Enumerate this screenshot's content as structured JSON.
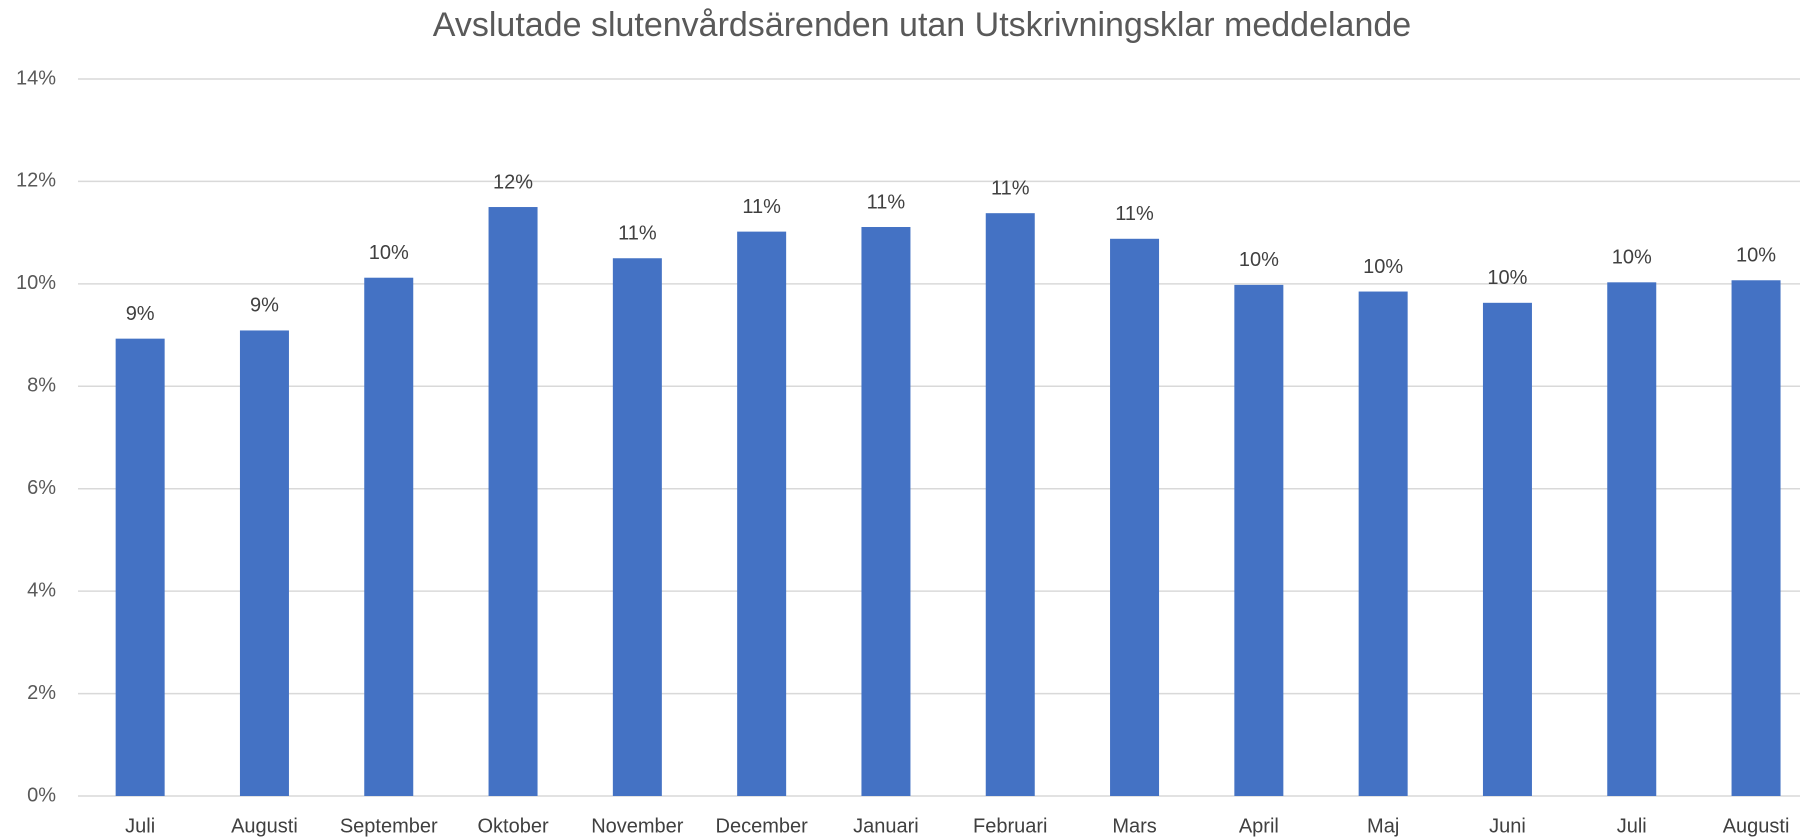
{
  "chart_data": {
    "type": "bar",
    "title": "Avslutade slutenvårdsärenden utan Utskrivningsklar meddelande",
    "categories": [
      "Juli",
      "Augusti",
      "September",
      "Oktober",
      "November",
      "December",
      "Januari",
      "Februari",
      "Mars",
      "April",
      "Maj",
      "Juni",
      "Juli",
      "Augusti"
    ],
    "values": [
      8.93,
      9.09,
      10.12,
      11.5,
      10.5,
      11.02,
      11.11,
      11.38,
      10.88,
      9.98,
      9.85,
      9.63,
      10.03,
      10.07
    ],
    "value_labels": [
      "9%",
      "9%",
      "10%",
      "12%",
      "11%",
      "11%",
      "11%",
      "11%",
      "11%",
      "10%",
      "10%",
      "10%",
      "10%",
      "10%"
    ],
    "color": "#4472c4",
    "ylim": [
      0,
      14
    ],
    "yticks": [
      {
        "value": 0,
        "label": "0%"
      },
      {
        "value": 2,
        "label": "2%"
      },
      {
        "value": 4,
        "label": "4%"
      },
      {
        "value": 6,
        "label": "6%"
      },
      {
        "value": 8,
        "label": "8%"
      },
      {
        "value": 10,
        "label": "10%"
      },
      {
        "value": 12,
        "label": "12%"
      },
      {
        "value": 14,
        "label": "14%"
      }
    ],
    "grid": true
  }
}
